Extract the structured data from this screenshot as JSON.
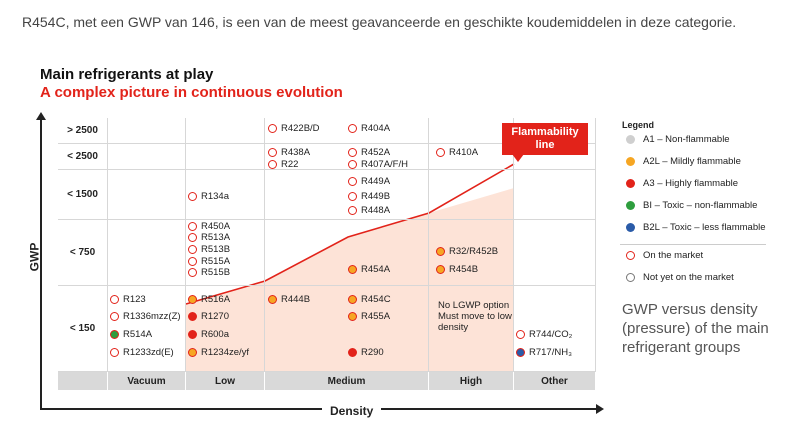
{
  "intro_text": "R454C, met een GWP van 146, is een van de meest geavanceerde en geschikte koudemiddelen in deze categorie.",
  "chart_data": {
    "type": "table",
    "title": "Main refrigerants at play",
    "subtitle": "A complex picture in continuous evolution",
    "xlabel": "Density",
    "ylabel": "GWP",
    "columns": [
      "Vacuum",
      "Low",
      "Medium",
      "High",
      "Other"
    ],
    "rows": [
      "> 2500",
      "< 2500",
      "< 1500",
      "< 750",
      "< 150"
    ],
    "flammability_label": "Flammability line",
    "note": "No LGWP option Must move to low density",
    "legend": {
      "title": "Legend",
      "items": [
        {
          "label": "A1 – Non-flammable",
          "color": "#cfcfcf"
        },
        {
          "label": "A2L – Mildly flammable",
          "color": "#f6a623"
        },
        {
          "label": "A3 – Highly flammable",
          "color": "#e2231a"
        },
        {
          "label": "BI – Toxic – non-flammable",
          "color": "#2e9e3e"
        },
        {
          "label": "B2L – Toxic – less flammable",
          "color": "#2a5ba8"
        }
      ],
      "markers": [
        {
          "label": "On the market",
          "type": "on"
        },
        {
          "label": "Not yet on the market",
          "type": "not"
        }
      ]
    },
    "caption": "GWP versus density (pressure) of the main refrigerant groups",
    "refrigerants": [
      {
        "name": "R422B/D",
        "col": "Medium",
        "row": "> 2500",
        "fill": "#ffffff",
        "market": "on"
      },
      {
        "name": "R404A",
        "col": "Medium",
        "row": "> 2500",
        "fill": "#ffffff",
        "market": "on"
      },
      {
        "name": "R438A",
        "col": "Medium",
        "row": "< 2500",
        "fill": "#ffffff",
        "market": "on"
      },
      {
        "name": "R22",
        "col": "Medium",
        "row": "< 2500",
        "fill": "#ffffff",
        "market": "on"
      },
      {
        "name": "R452A",
        "col": "Medium",
        "row": "< 2500",
        "fill": "#ffffff",
        "market": "on"
      },
      {
        "name": "R407A/F/H",
        "col": "Medium",
        "row": "< 2500",
        "fill": "#ffffff",
        "market": "on"
      },
      {
        "name": "R410A",
        "col": "High",
        "row": "< 2500",
        "fill": "#ffffff",
        "market": "on"
      },
      {
        "name": "R134a",
        "col": "Low",
        "row": "< 1500",
        "fill": "#ffffff",
        "market": "on"
      },
      {
        "name": "R449A",
        "col": "Medium",
        "row": "< 1500",
        "fill": "#ffffff",
        "market": "on"
      },
      {
        "name": "R449B",
        "col": "Medium",
        "row": "< 1500",
        "fill": "#ffffff",
        "market": "on"
      },
      {
        "name": "R448A",
        "col": "Medium",
        "row": "< 1500",
        "fill": "#ffffff",
        "market": "on"
      },
      {
        "name": "R450A",
        "col": "Low",
        "row": "< 750",
        "fill": "#ffffff",
        "market": "on"
      },
      {
        "name": "R513A",
        "col": "Low",
        "row": "< 750",
        "fill": "#ffffff",
        "market": "on"
      },
      {
        "name": "R513B",
        "col": "Low",
        "row": "< 750",
        "fill": "#ffffff",
        "market": "on"
      },
      {
        "name": "R515A",
        "col": "Low",
        "row": "< 750",
        "fill": "#ffffff",
        "market": "on"
      },
      {
        "name": "R515B",
        "col": "Low",
        "row": "< 750",
        "fill": "#ffffff",
        "market": "on"
      },
      {
        "name": "R454A",
        "col": "Medium",
        "row": "< 750",
        "fill": "#f6a623",
        "market": "on"
      },
      {
        "name": "R32/R452B",
        "col": "High",
        "row": "< 750",
        "fill": "#f6a623",
        "market": "on"
      },
      {
        "name": "R454B",
        "col": "High",
        "row": "< 750",
        "fill": "#f6a623",
        "market": "on"
      },
      {
        "name": "R123",
        "col": "Vacuum",
        "row": "< 150",
        "fill": "#ffffff",
        "market": "on"
      },
      {
        "name": "R1336mzz(Z)",
        "col": "Vacuum",
        "row": "< 150",
        "fill": "#ffffff",
        "market": "on"
      },
      {
        "name": "R514A",
        "col": "Vacuum",
        "row": "< 150",
        "fill": "#2e9e3e",
        "market": "on"
      },
      {
        "name": "R1233zd(E)",
        "col": "Vacuum",
        "row": "< 150",
        "fill": "#ffffff",
        "market": "on"
      },
      {
        "name": "R516A",
        "col": "Low",
        "row": "< 150",
        "fill": "#f6a623",
        "market": "on"
      },
      {
        "name": "R1270",
        "col": "Low",
        "row": "< 150",
        "fill": "#e2231a",
        "market": "on"
      },
      {
        "name": "R600a",
        "col": "Low",
        "row": "< 150",
        "fill": "#e2231a",
        "market": "on"
      },
      {
        "name": "R1234ze/yf",
        "col": "Low",
        "row": "< 150",
        "fill": "#f6a623",
        "market": "on"
      },
      {
        "name": "R444B",
        "col": "Medium",
        "row": "< 150",
        "fill": "#f6a623",
        "market": "on"
      },
      {
        "name": "R454C",
        "col": "Medium",
        "row": "< 150",
        "fill": "#f6a623",
        "market": "on"
      },
      {
        "name": "R455A",
        "col": "Medium",
        "row": "< 150",
        "fill": "#f6a623",
        "market": "on"
      },
      {
        "name": "R290",
        "col": "Medium",
        "row": "< 150",
        "fill": "#e2231a",
        "market": "on"
      },
      {
        "name": "R744/CO₂",
        "col": "Other",
        "row": "< 150",
        "fill": "#ffffff",
        "market": "on"
      },
      {
        "name": "R717/NH₃",
        "col": "Other",
        "row": "< 150",
        "fill": "#2a5ba8",
        "market": "on"
      }
    ]
  }
}
